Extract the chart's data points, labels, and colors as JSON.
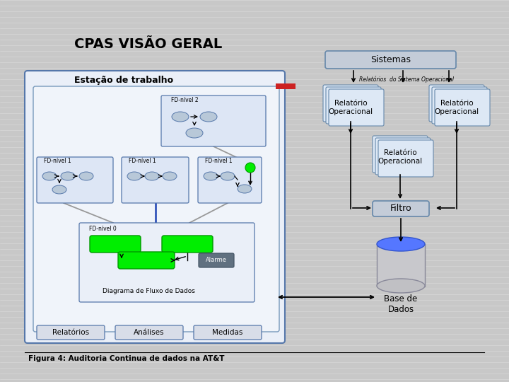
{
  "title": "CPAS VISÃO GERAL",
  "bg_stripe_color": "#cccccc",
  "fig_bg": "#c8c8c8",
  "caption": "Figura 4: Auditoria Continua de dados na AT&T",
  "sistemas_label": "Sistemas",
  "rel_op_label": "Relatório\nOperacional",
  "rel_so_label": "Relatórios  do Sistema Operacional",
  "filtro_label": "Filtro",
  "base_label": "Base de\nDados",
  "estacao_label": "Estação de trabalho",
  "fd0_label": "FD-nível 0",
  "fd1_label": "FD-nível 1",
  "fd2_label": "FD-nível 2",
  "alarme_label": "Alarme",
  "dfd_label": "Diagrama de Fluxo de Dados",
  "relatorios_btn": "Relatórios",
  "analises_btn": "Análises",
  "medidas_btn": "Medidas"
}
